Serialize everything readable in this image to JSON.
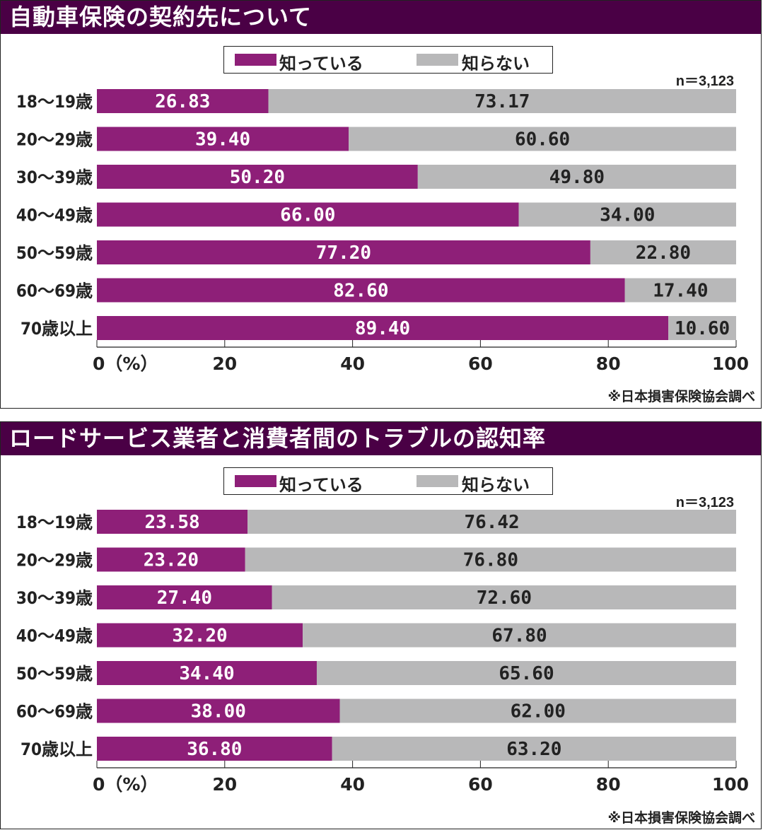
{
  "colors": {
    "known": "#8e1f78",
    "unknown": "#b8b8b9",
    "title_bg": "#4a0045"
  },
  "chart_data": [
    {
      "type": "bar",
      "orientation": "horizontal",
      "stacked": true,
      "title": "自動車保険の契約先について",
      "sample_size": "n＝3,123",
      "source": "※日本損害保険協会調べ",
      "legend": [
        "知っている",
        "知らない"
      ],
      "categories": [
        "18〜19歳",
        "20〜29歳",
        "30〜39歳",
        "40〜49歳",
        "50〜59歳",
        "60〜69歳",
        "70歳以上"
      ],
      "series": [
        {
          "name": "知っている",
          "values": [
            26.83,
            39.4,
            50.2,
            66.0,
            77.2,
            82.6,
            89.4
          ],
          "labels": [
            "26.83",
            "39.40",
            "50.20",
            "66.00",
            "77.20",
            "82.60",
            "89.40"
          ]
        },
        {
          "name": "知らない",
          "values": [
            73.17,
            60.6,
            49.8,
            34.0,
            22.8,
            17.4,
            10.6
          ],
          "labels": [
            "73.17",
            "60.60",
            "49.80",
            "34.00",
            "22.80",
            "17.40",
            "10.60"
          ]
        }
      ],
      "xlim": [
        0,
        100
      ],
      "xticks": [
        "0（%）",
        "20",
        "40",
        "60",
        "80",
        "100"
      ],
      "legend_position": "top-center"
    },
    {
      "type": "bar",
      "orientation": "horizontal",
      "stacked": true,
      "title": "ロードサービス業者と消費者間のトラブルの認知率",
      "sample_size": "n＝3,123",
      "source": "※日本損害保険協会調べ",
      "legend": [
        "知っている",
        "知らない"
      ],
      "categories": [
        "18〜19歳",
        "20〜29歳",
        "30〜39歳",
        "40〜49歳",
        "50〜59歳",
        "60〜69歳",
        "70歳以上"
      ],
      "series": [
        {
          "name": "知っている",
          "values": [
            23.58,
            23.2,
            27.4,
            32.2,
            34.4,
            38.0,
            36.8
          ],
          "labels": [
            "23.58",
            "23.20",
            "27.40",
            "32.20",
            "34.40",
            "38.00",
            "36.80"
          ]
        },
        {
          "name": "知らない",
          "values": [
            76.42,
            76.8,
            72.6,
            67.8,
            65.6,
            62.0,
            63.2
          ],
          "labels": [
            "76.42",
            "76.80",
            "72.60",
            "67.80",
            "65.60",
            "62.00",
            "63.20"
          ]
        }
      ],
      "xlim": [
        0,
        100
      ],
      "xticks": [
        "0（%）",
        "20",
        "40",
        "60",
        "80",
        "100"
      ],
      "legend_position": "top-center"
    }
  ]
}
